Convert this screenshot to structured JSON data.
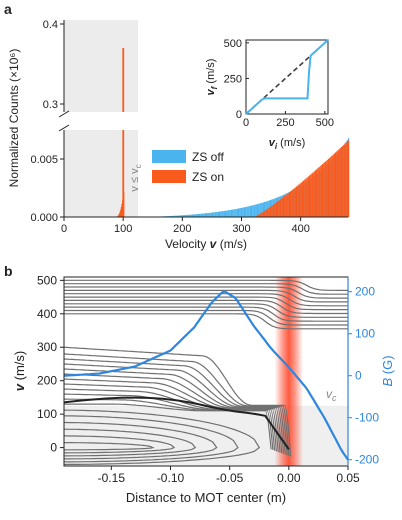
{
  "chart_data": [
    {
      "panel": "a",
      "type": "bar",
      "ylabel": "Normalized Counts (×10⁶)",
      "xlabel": "Velocity v (m/s)",
      "xlim": [
        0,
        480
      ],
      "ylim_lower": [
        0,
        0.0075
      ],
      "ylim_upper": [
        0.29,
        0.405
      ],
      "xticks": [
        "0",
        "100",
        "200",
        "300",
        "400"
      ],
      "yticks_lower": [
        "0.000",
        "0.005"
      ],
      "yticks_upper": [
        "0.3",
        "0.4"
      ],
      "shaded_region": {
        "label": "v ≤ v",
        "label_sub": "c",
        "x_range": [
          0,
          125
        ]
      },
      "legend_position": "center-right",
      "series": [
        {
          "name": "ZS off",
          "color": "#4ab4ee",
          "curve": "exponential",
          "x_start": 140,
          "y_at_x_start": 0,
          "y_at_end": 0.0068,
          "x_end": 480
        },
        {
          "name": "ZS on",
          "color": "#fb5a1d",
          "spike": {
            "x": 100,
            "y": 0.37
          },
          "shoulder": {
            "x_range": [
              85,
              100
            ],
            "y_max": 0.0022
          },
          "ramp": {
            "x_start": 320,
            "x_end": 480,
            "y_end": 0.0066
          }
        }
      ],
      "inset": {
        "type": "line",
        "xlabel": "v",
        "xlabel_sub": "i",
        "xlabel_unit": "(m/s)",
        "ylabel": "v",
        "ylabel_sub": "f",
        "ylabel_unit": "(m/s)",
        "xlim": [
          0,
          520
        ],
        "ylim": [
          0,
          520
        ],
        "xticks": [
          "0",
          "250",
          "500"
        ],
        "yticks": [
          "0",
          "250",
          "500"
        ],
        "series": [
          {
            "name": "identity",
            "style": "dashed",
            "color": "#404040",
            "x": [
              0,
              520
            ],
            "y": [
              0,
              520
            ]
          },
          {
            "name": "zeeman",
            "color": "#4ab4ee",
            "x": [
              0,
              100,
              120,
              390,
              400,
              410,
              520
            ],
            "y": [
              0,
              100,
              110,
              110,
              300,
              410,
              520
            ]
          }
        ]
      }
    },
    {
      "panel": "b",
      "type": "line",
      "xlabel": "Distance to MOT center (m)",
      "ylabel": "v (m/s)",
      "y2label": "B (G)",
      "xlim": [
        -0.19,
        0.05
      ],
      "ylim": [
        -55,
        510
      ],
      "y2lim": [
        -215,
        235
      ],
      "xticks": [
        "-0.15",
        "-0.10",
        "-0.05",
        "0.00",
        "0.05"
      ],
      "yticks": [
        "0",
        "100",
        "200",
        "300",
        "400",
        "500"
      ],
      "y2ticks": [
        "-200",
        "-100",
        "0",
        "100",
        "200"
      ],
      "vc_label": "v",
      "vc_label_sub": "c",
      "vc_value": 125,
      "mot_beam_center": 0.0,
      "field_curve": {
        "color": "#2e86de",
        "x": [
          -0.19,
          -0.16,
          -0.13,
          -0.1,
          -0.08,
          -0.065,
          -0.055,
          -0.045,
          -0.03,
          -0.015,
          0.0,
          0.015,
          0.03,
          0.045,
          0.05
        ],
        "y": [
          0,
          5,
          22,
          60,
          115,
          175,
          202,
          185,
          120,
          65,
          20,
          -30,
          -100,
          -180,
          -200
        ]
      },
      "trajectory_starts": [
        130,
        145,
        160,
        175,
        190,
        205,
        220,
        235,
        250,
        265,
        280,
        300
      ],
      "high_velocity_starts": [
        400,
        410,
        420,
        430,
        440,
        450,
        460,
        470,
        480,
        490,
        500
      ]
    }
  ]
}
